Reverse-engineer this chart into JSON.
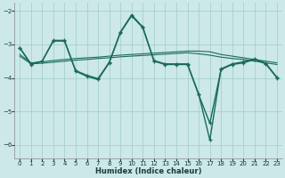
{
  "xlabel": "Humidex (Indice chaleur)",
  "bg_color": "#cce8e8",
  "line_color": "#1a6b5a",
  "grid_color": "#a8d0d0",
  "xlim": [
    -0.5,
    23.5
  ],
  "ylim": [
    -6.4,
    -1.75
  ],
  "yticks": [
    -6,
    -5,
    -4,
    -3,
    -2
  ],
  "xticks": [
    0,
    1,
    2,
    3,
    4,
    5,
    6,
    7,
    8,
    9,
    10,
    11,
    12,
    13,
    14,
    15,
    16,
    17,
    18,
    19,
    20,
    21,
    22,
    23
  ],
  "series": [
    {
      "x": [
        0,
        1,
        2,
        3,
        4,
        5,
        6,
        7,
        8,
        9,
        10,
        11,
        12,
        13,
        14,
        15,
        16,
        17,
        18,
        19,
        20,
        21,
        22,
        23
      ],
      "y": [
        -3.1,
        -3.6,
        -3.5,
        -2.9,
        -2.9,
        -3.8,
        -3.95,
        -4.05,
        -3.55,
        -2.65,
        -2.15,
        -2.5,
        -3.5,
        -3.6,
        -3.6,
        -3.6,
        -4.5,
        -5.35,
        -3.75,
        -3.6,
        -3.55,
        -3.45,
        -3.58,
        -4.0
      ],
      "lw": 1.0,
      "marker": true
    },
    {
      "x": [
        0,
        1,
        2,
        3,
        4,
        5,
        6,
        7,
        8,
        9,
        10,
        11,
        12,
        13,
        14,
        15,
        16,
        17,
        18,
        19,
        20,
        21,
        22,
        23
      ],
      "y": [
        -3.3,
        -3.55,
        -3.52,
        -3.48,
        -3.45,
        -3.42,
        -3.4,
        -3.38,
        -3.35,
        -3.32,
        -3.3,
        -3.28,
        -3.26,
        -3.24,
        -3.22,
        -3.2,
        -3.2,
        -3.22,
        -3.3,
        -3.35,
        -3.4,
        -3.45,
        -3.5,
        -3.55
      ],
      "lw": 0.8,
      "marker": false
    },
    {
      "x": [
        0,
        1,
        2,
        3,
        4,
        5,
        6,
        7,
        8,
        9,
        10,
        11,
        12,
        13,
        14,
        15,
        16,
        17,
        18,
        19,
        20,
        21,
        22,
        23
      ],
      "y": [
        -3.35,
        -3.58,
        -3.56,
        -3.53,
        -3.5,
        -3.47,
        -3.45,
        -3.42,
        -3.4,
        -3.37,
        -3.35,
        -3.33,
        -3.31,
        -3.29,
        -3.27,
        -3.25,
        -3.28,
        -3.32,
        -3.38,
        -3.42,
        -3.45,
        -3.5,
        -3.55,
        -3.6
      ],
      "lw": 0.8,
      "marker": false
    },
    {
      "x": [
        0,
        1,
        2,
        3,
        4,
        5,
        6,
        7,
        8,
        9,
        10,
        11,
        12,
        13,
        14,
        15,
        16,
        17,
        18,
        19,
        20,
        21,
        22,
        23
      ],
      "y": [
        -3.1,
        -3.58,
        -3.5,
        -2.88,
        -2.88,
        -3.78,
        -3.92,
        -4.02,
        -3.53,
        -2.63,
        -2.12,
        -2.48,
        -3.48,
        -3.58,
        -3.58,
        -3.58,
        -4.48,
        -5.85,
        -3.73,
        -3.58,
        -3.52,
        -3.43,
        -3.56,
        -3.98
      ],
      "lw": 1.0,
      "marker": true
    }
  ]
}
